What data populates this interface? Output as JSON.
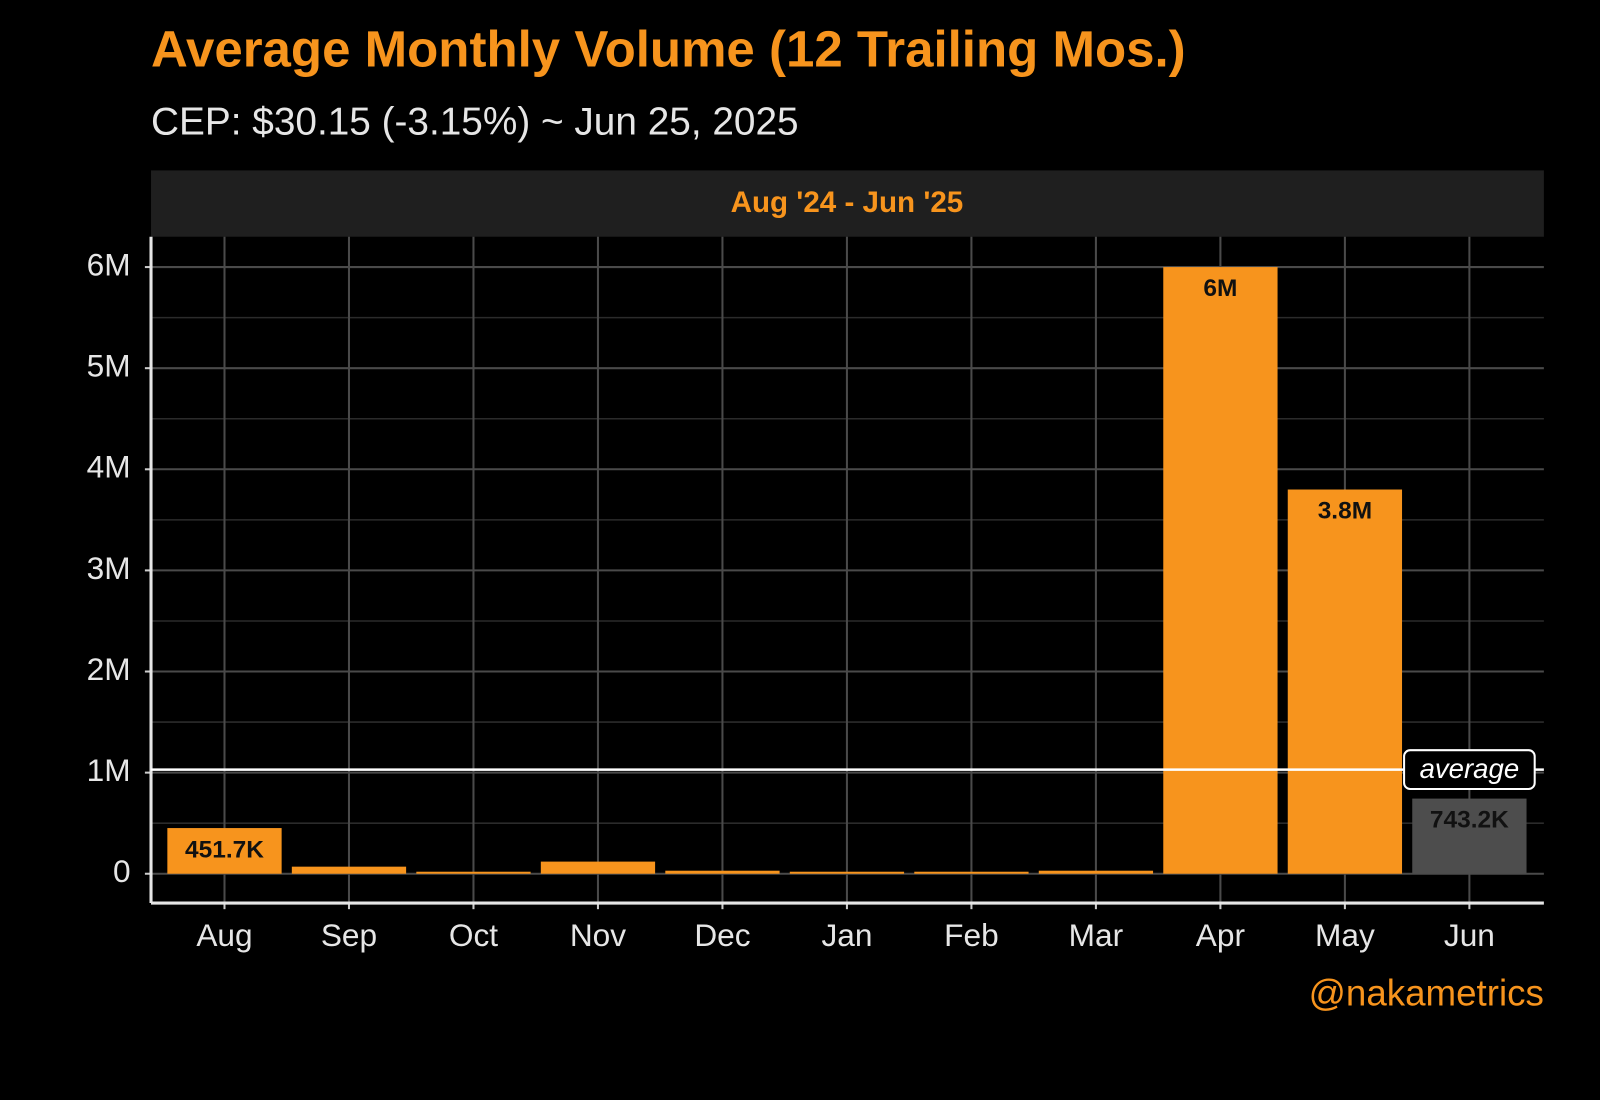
{
  "chart_data": {
    "type": "bar",
    "title": "Average Monthly Volume (12 Trailing Mos.)",
    "subtitle": "CEP: $30.15 (-3.15%) ~ Jun 25, 2025",
    "panel_label": "Aug '24 - Jun '25",
    "watermark": "@nakametrics",
    "categories": [
      "Aug",
      "Sep",
      "Oct",
      "Nov",
      "Dec",
      "Jan",
      "Feb",
      "Mar",
      "Apr",
      "May",
      "Jun"
    ],
    "values": [
      451700,
      70000,
      20000,
      120000,
      30000,
      20000,
      20000,
      30000,
      6000000,
      3800000,
      743200
    ],
    "value_labels": [
      "451.7K",
      null,
      null,
      null,
      null,
      null,
      null,
      null,
      "6M",
      "3.8M",
      "743.2K"
    ],
    "colors": [
      "#f7941d",
      "#f7941d",
      "#f7941d",
      "#f7941d",
      "#f7941d",
      "#f7941d",
      "#f7941d",
      "#f7941d",
      "#f7941d",
      "#f7941d",
      "#4d4d4d"
    ],
    "average": {
      "value": 1030000,
      "label": "average",
      "color": "#ffffff"
    },
    "ylim": [
      -290000,
      6300000
    ],
    "yticks": [
      {
        "value": 0,
        "label": "0"
      },
      {
        "value": 1000000,
        "label": "1M"
      },
      {
        "value": 2000000,
        "label": "2M"
      },
      {
        "value": 3000000,
        "label": "3M"
      },
      {
        "value": 4000000,
        "label": "4M"
      },
      {
        "value": 5000000,
        "label": "5M"
      },
      {
        "value": 6000000,
        "label": "6M"
      }
    ],
    "minor_yticks": [
      500000,
      1500000,
      2500000,
      3500000,
      4500000,
      5500000
    ],
    "grid": true
  }
}
